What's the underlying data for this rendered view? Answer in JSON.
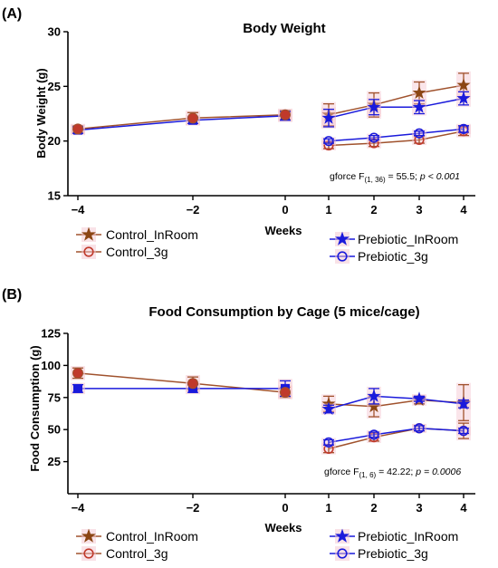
{
  "colors": {
    "control_line": "#a0522d",
    "control_inroom_marker": "#8b4513",
    "control_3g_marker": "#c0392b",
    "prebiotic_line": "#1a1adb",
    "highlight": "#f4c6d0"
  },
  "chart_data": [
    {
      "panel_label": "(A)",
      "type": "line",
      "title": "Body Weight",
      "xlabel": "Weeks",
      "ylabel": "Body Weight (g)",
      "xlim": [
        -4,
        4
      ],
      "ylim": [
        15,
        30
      ],
      "x_ticks": [
        -4,
        -2,
        0,
        1,
        2,
        3,
        4
      ],
      "x_tick_labels": [
        "−4",
        "−2",
        "0",
        "1",
        "2",
        "3",
        "4"
      ],
      "y_ticks": [
        15,
        20,
        25,
        30
      ],
      "y_tick_labels": [
        "15",
        "20",
        "25",
        "30"
      ],
      "baseline": {
        "x": [
          -4,
          -2,
          0
        ],
        "control": [
          21.1,
          22.1,
          22.4
        ],
        "control_err": [
          0.3,
          0.5,
          0.4
        ],
        "prebiotic": [
          21.0,
          21.9,
          22.3
        ],
        "prebiotic_err": [
          0.3,
          0.3,
          0.4
        ]
      },
      "series": [
        {
          "name": "Control_InRoom",
          "marker": "star",
          "x": [
            1,
            2,
            3,
            4
          ],
          "values": [
            22.4,
            23.3,
            24.4,
            25.1
          ],
          "err": [
            1.0,
            1.1,
            1.0,
            1.1
          ]
        },
        {
          "name": "Prebiotic_InRoom",
          "marker": "star",
          "x": [
            1,
            2,
            3,
            4
          ],
          "values": [
            22.1,
            23.1,
            23.1,
            23.9
          ],
          "err": [
            0.8,
            0.7,
            0.6,
            0.6
          ]
        },
        {
          "name": "Control_3g",
          "marker": "circle",
          "x": [
            1,
            2,
            3,
            4
          ],
          "values": [
            19.6,
            19.8,
            20.1,
            20.9
          ],
          "err": [
            0.3,
            0.3,
            0.3,
            0.4
          ]
        },
        {
          "name": "Prebiotic_3g",
          "marker": "circle",
          "x": [
            1,
            2,
            3,
            4
          ],
          "values": [
            20.0,
            20.3,
            20.7,
            21.1
          ],
          "err": [
            0.2,
            0.2,
            0.2,
            0.3
          ]
        }
      ],
      "annotation": {
        "prefix": "gforce F",
        "sub": "(1, 36)",
        "middle": " = 55.5; ",
        "p": "p < 0.001"
      },
      "legend_left": [
        "Control_InRoom",
        "Control_3g"
      ],
      "legend_right": [
        "Prebiotic_InRoom",
        "Prebiotic_3g"
      ]
    },
    {
      "panel_label": "(B)",
      "type": "line",
      "title": "Food Consumption by Cage (5 mice/cage)",
      "xlabel": "Weeks",
      "ylabel": "Food Consumption (g)",
      "xlim": [
        -4,
        4
      ],
      "ylim": [
        0,
        125
      ],
      "x_ticks": [
        -4,
        -2,
        0,
        1,
        2,
        3,
        4
      ],
      "x_tick_labels": [
        "−4",
        "−2",
        "0",
        "1",
        "2",
        "3",
        "4"
      ],
      "y_ticks": [
        25,
        50,
        75,
        100,
        125
      ],
      "y_tick_labels": [
        "25",
        "50",
        "75",
        "100",
        "125"
      ],
      "baseline": {
        "x": [
          -4,
          -2,
          0
        ],
        "control": [
          94,
          86,
          79
        ],
        "control_err": [
          4,
          5,
          4
        ],
        "prebiotic": [
          82,
          82,
          82
        ],
        "prebiotic_err": [
          3,
          3,
          6
        ]
      },
      "series": [
        {
          "name": "Control_InRoom",
          "marker": "star",
          "x": [
            1,
            2,
            3,
            4
          ],
          "values": [
            70,
            68,
            73,
            71
          ],
          "err": [
            6,
            8,
            3,
            14
          ]
        },
        {
          "name": "Prebiotic_InRoom",
          "marker": "star",
          "x": [
            1,
            2,
            3,
            4
          ],
          "values": [
            66,
            76,
            74,
            70
          ],
          "err": [
            3,
            6,
            2,
            3
          ]
        },
        {
          "name": "Control_3g",
          "marker": "circle",
          "x": [
            1,
            2,
            3,
            4
          ],
          "values": [
            35,
            44,
            51,
            49
          ],
          "err": [
            3,
            3,
            2,
            6
          ]
        },
        {
          "name": "Prebiotic_3g",
          "marker": "circle",
          "x": [
            1,
            2,
            3,
            4
          ],
          "values": [
            40,
            46,
            51,
            49
          ],
          "err": [
            2,
            2,
            2,
            2
          ]
        }
      ],
      "annotation": {
        "prefix": "gforce F",
        "sub": "(1, 6)",
        "middle": " = 42.22; ",
        "p": "p = 0.0006"
      },
      "legend_left": [
        "Control_InRoom",
        "Control_3g"
      ],
      "legend_right": [
        "Prebiotic_InRoom",
        "Prebiotic_3g"
      ]
    }
  ]
}
